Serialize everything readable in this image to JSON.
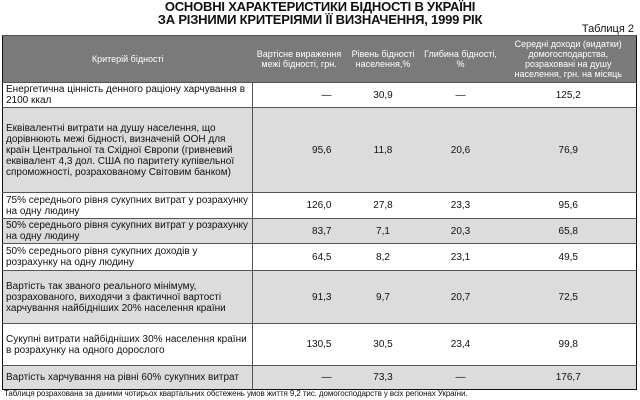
{
  "title": {
    "line1": "ОСНОВНІ ХАРАКТЕРИСТИКИ БІДНОСТІ В УКРАЇНІ",
    "line2": "ЗА РІЗНИМИ КРИТЕРІЯМИ ЇЇ ВИЗНАЧЕННЯ, 1999 РІК"
  },
  "table_label": "Таблиця 2",
  "columns": [
    "Критерій бідності",
    "Вартісне вираження межі бідності, грн.",
    "Рівень бідності населення,%",
    "Глибина бідності, %",
    "Середні доходи (видатки) домогосподарства, розраховані на душу населення, грн. на місяць"
  ],
  "rows": [
    {
      "criterion": "Енергетична цінність денного раціону харчування в 2100 ккал",
      "line": "—",
      "level": "30,9",
      "depth": "—",
      "income": "125,2"
    },
    {
      "criterion": "Еквівалентні витрати на душу населення, що дорівнюють межі бідності, визначеній ООН для країн Центральної та Східної Європи (гривневий еквівалент 4,3 дол. США по паритету купівельної спроможності, розрахованому Світовим банком)",
      "line": "95,6",
      "level": "11,8",
      "depth": "20,6",
      "income": "76,9"
    },
    {
      "criterion": "75% середнього рівня сукупних витрат у розрахунку на одну людину",
      "line": "126,0",
      "level": "27,8",
      "depth": "23,3",
      "income": "95,6"
    },
    {
      "criterion": "50% середнього рівня сукупних витрат у розрахунку на одну людину",
      "line": "83,7",
      "level": "7,1",
      "depth": "20,3",
      "income": "65,8"
    },
    {
      "criterion": "50% середнього рівня сукупних доходів у розрахунку на одну людину",
      "line": "64,5",
      "level": "8,2",
      "depth": "23,1",
      "income": "49,5"
    },
    {
      "criterion": "Вартість так званого реального мінімуму, розрахованого, виходячи з фактичної вартості харчування найбідніших 20% населення країни",
      "line": "91,3",
      "level": "9,7",
      "depth": "20,7",
      "income": "72,5"
    },
    {
      "criterion": "Сукупні витрати найбідніших 30% населення країни в розрахунку на одного дорослого",
      "line": "130,5",
      "level": "30,5",
      "depth": "23,4",
      "income": "99,8"
    },
    {
      "criterion": "Вартість харчування на рівні 60% сукупних витрат",
      "line": "—",
      "level": "73,3",
      "depth": "—",
      "income": "176,7"
    }
  ],
  "footnote": "Таблиця розрахована за даними чотирьох квартальних обстежень умов життя 9,2 тис. домогосподарств у всіх регіонах України."
}
